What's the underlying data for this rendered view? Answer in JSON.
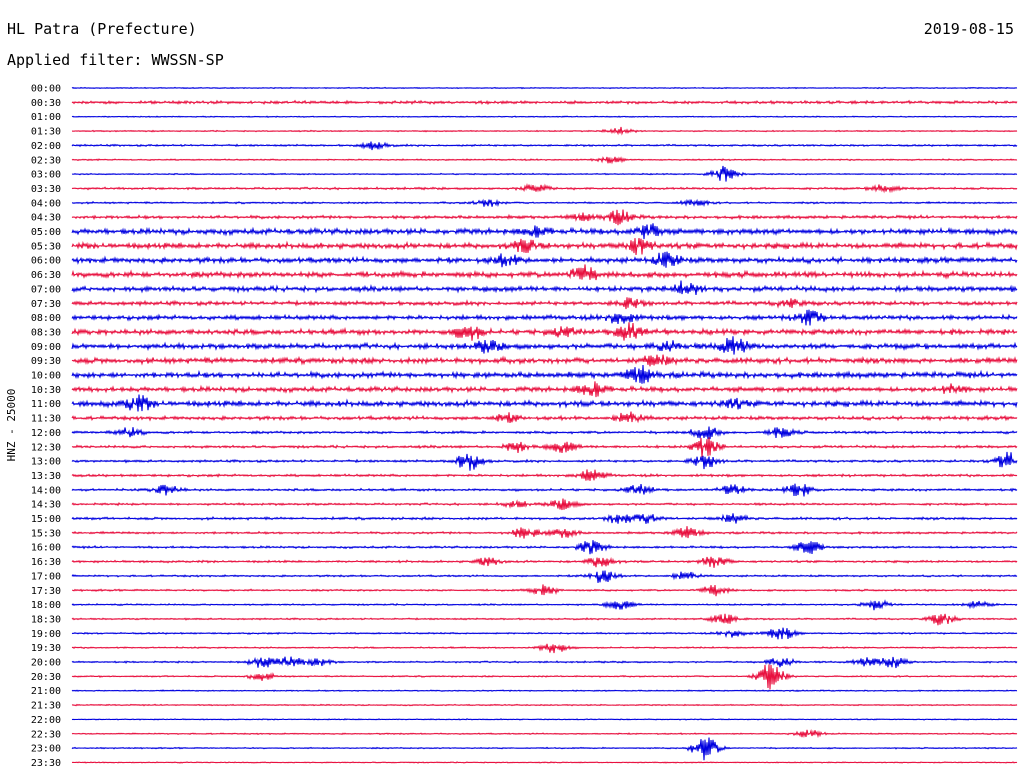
{
  "header": {
    "station": "HL Patra (Prefecture)",
    "date": "2019-08-15",
    "filter_label": "Applied filter:",
    "filter_value": "WWSSN-SP"
  },
  "chart_data": {
    "type": "line",
    "title": "HL Patra (Prefecture)",
    "ylabel": "HNZ - 25000",
    "xlabel": "",
    "grid": false,
    "colors": [
      "#0000e0",
      "#e8103f"
    ],
    "rows": [
      {
        "time": "00:00",
        "color": "blue",
        "noise": 0.6,
        "events": []
      },
      {
        "time": "00:30",
        "color": "red",
        "noise": 1.6,
        "events": []
      },
      {
        "time": "01:00",
        "color": "blue",
        "noise": 0.6,
        "events": []
      },
      {
        "time": "01:30",
        "color": "red",
        "noise": 0.7,
        "events": [
          [
            0.58,
            4
          ]
        ]
      },
      {
        "time": "02:00",
        "color": "blue",
        "noise": 1.0,
        "events": [
          [
            0.32,
            4
          ]
        ]
      },
      {
        "time": "02:30",
        "color": "red",
        "noise": 0.8,
        "events": [
          [
            0.57,
            3
          ]
        ]
      },
      {
        "time": "03:00",
        "color": "blue",
        "noise": 0.7,
        "events": [
          [
            0.69,
            8
          ]
        ]
      },
      {
        "time": "03:30",
        "color": "red",
        "noise": 1.2,
        "events": [
          [
            0.49,
            4
          ],
          [
            0.86,
            4
          ]
        ]
      },
      {
        "time": "04:00",
        "color": "blue",
        "noise": 1.0,
        "events": [
          [
            0.44,
            4
          ],
          [
            0.66,
            3
          ]
        ]
      },
      {
        "time": "04:30",
        "color": "red",
        "noise": 1.8,
        "events": [
          [
            0.58,
            7
          ],
          [
            0.54,
            3
          ]
        ]
      },
      {
        "time": "05:00",
        "color": "blue",
        "noise": 3.2,
        "events": [
          [
            0.49,
            5
          ],
          [
            0.61,
            7
          ]
        ]
      },
      {
        "time": "05:30",
        "color": "red",
        "noise": 3.2,
        "events": [
          [
            0.48,
            6
          ],
          [
            0.6,
            8
          ]
        ]
      },
      {
        "time": "06:00",
        "color": "blue",
        "noise": 3.0,
        "events": [
          [
            0.46,
            5
          ],
          [
            0.63,
            8
          ]
        ]
      },
      {
        "time": "06:30",
        "color": "red",
        "noise": 3.2,
        "events": [
          [
            0.54,
            8
          ]
        ]
      },
      {
        "time": "07:00",
        "color": "blue",
        "noise": 3.0,
        "events": [
          [
            0.65,
            8
          ]
        ]
      },
      {
        "time": "07:30",
        "color": "red",
        "noise": 2.2,
        "events": [
          [
            0.59,
            5
          ],
          [
            0.76,
            4
          ]
        ]
      },
      {
        "time": "08:00",
        "color": "blue",
        "noise": 2.6,
        "events": [
          [
            0.58,
            7
          ],
          [
            0.78,
            7
          ]
        ]
      },
      {
        "time": "08:30",
        "color": "red",
        "noise": 3.0,
        "events": [
          [
            0.42,
            8
          ],
          [
            0.59,
            9
          ],
          [
            0.52,
            4
          ]
        ]
      },
      {
        "time": "09:00",
        "color": "blue",
        "noise": 3.0,
        "events": [
          [
            0.44,
            5
          ],
          [
            0.7,
            9
          ],
          [
            0.63,
            5
          ]
        ]
      },
      {
        "time": "09:30",
        "color": "red",
        "noise": 3.2,
        "events": [
          [
            0.62,
            6
          ]
        ]
      },
      {
        "time": "10:00",
        "color": "blue",
        "noise": 3.2,
        "events": [
          [
            0.6,
            8
          ]
        ]
      },
      {
        "time": "10:30",
        "color": "red",
        "noise": 2.8,
        "events": [
          [
            0.55,
            8
          ],
          [
            0.93,
            4
          ]
        ]
      },
      {
        "time": "11:00",
        "color": "blue",
        "noise": 3.2,
        "events": [
          [
            0.07,
            7
          ],
          [
            0.7,
            4
          ]
        ]
      },
      {
        "time": "11:30",
        "color": "red",
        "noise": 2.0,
        "events": [
          [
            0.59,
            7
          ],
          [
            0.46,
            4
          ]
        ]
      },
      {
        "time": "12:00",
        "color": "blue",
        "noise": 1.4,
        "events": [
          [
            0.06,
            5
          ],
          [
            0.67,
            7
          ],
          [
            0.75,
            5
          ]
        ]
      },
      {
        "time": "12:30",
        "color": "red",
        "noise": 1.5,
        "events": [
          [
            0.67,
            10
          ],
          [
            0.52,
            6
          ],
          [
            0.47,
            5
          ]
        ]
      },
      {
        "time": "13:00",
        "color": "blue",
        "noise": 1.3,
        "events": [
          [
            0.42,
            9
          ],
          [
            0.67,
            7
          ],
          [
            0.99,
            9
          ]
        ]
      },
      {
        "time": "13:30",
        "color": "red",
        "noise": 1.4,
        "events": [
          [
            0.55,
            6
          ]
        ]
      },
      {
        "time": "14:00",
        "color": "blue",
        "noise": 1.3,
        "events": [
          [
            0.1,
            5
          ],
          [
            0.6,
            5
          ],
          [
            0.7,
            5
          ],
          [
            0.77,
            7
          ]
        ]
      },
      {
        "time": "14:30",
        "color": "red",
        "noise": 1.2,
        "events": [
          [
            0.52,
            5
          ],
          [
            0.47,
            3
          ]
        ]
      },
      {
        "time": "15:00",
        "color": "blue",
        "noise": 1.4,
        "events": [
          [
            0.58,
            6
          ],
          [
            0.61,
            5
          ],
          [
            0.7,
            5
          ]
        ]
      },
      {
        "time": "15:30",
        "color": "red",
        "noise": 1.2,
        "events": [
          [
            0.48,
            6
          ],
          [
            0.52,
            5
          ],
          [
            0.65,
            6
          ]
        ]
      },
      {
        "time": "16:00",
        "color": "blue",
        "noise": 1.2,
        "events": [
          [
            0.55,
            7
          ],
          [
            0.78,
            7
          ]
        ]
      },
      {
        "time": "16:30",
        "color": "red",
        "noise": 1.2,
        "events": [
          [
            0.56,
            6
          ],
          [
            0.68,
            6
          ],
          [
            0.44,
            4
          ]
        ]
      },
      {
        "time": "17:00",
        "color": "blue",
        "noise": 1.0,
        "events": [
          [
            0.56,
            7
          ],
          [
            0.65,
            5
          ]
        ]
      },
      {
        "time": "17:30",
        "color": "red",
        "noise": 1.0,
        "events": [
          [
            0.5,
            5
          ],
          [
            0.68,
            5
          ]
        ]
      },
      {
        "time": "18:00",
        "color": "blue",
        "noise": 0.9,
        "events": [
          [
            0.58,
            5
          ],
          [
            0.85,
            5
          ],
          [
            0.96,
            4
          ]
        ]
      },
      {
        "time": "18:30",
        "color": "red",
        "noise": 0.9,
        "events": [
          [
            0.69,
            6
          ],
          [
            0.92,
            6
          ]
        ]
      },
      {
        "time": "19:00",
        "color": "blue",
        "noise": 0.9,
        "events": [
          [
            0.75,
            7
          ],
          [
            0.7,
            4
          ]
        ]
      },
      {
        "time": "19:30",
        "color": "red",
        "noise": 0.8,
        "events": [
          [
            0.51,
            6
          ]
        ]
      },
      {
        "time": "20:00",
        "color": "blue",
        "noise": 0.9,
        "events": [
          [
            0.2,
            6
          ],
          [
            0.23,
            5
          ],
          [
            0.26,
            4
          ],
          [
            0.87,
            7
          ],
          [
            0.84,
            4
          ],
          [
            0.75,
            5
          ]
        ]
      },
      {
        "time": "20:30",
        "color": "red",
        "noise": 0.8,
        "events": [
          [
            0.74,
            14
          ],
          [
            0.2,
            4
          ]
        ]
      },
      {
        "time": "21:00",
        "color": "blue",
        "noise": 0.7,
        "events": []
      },
      {
        "time": "21:30",
        "color": "red",
        "noise": 0.7,
        "events": []
      },
      {
        "time": "22:00",
        "color": "blue",
        "noise": 0.6,
        "events": []
      },
      {
        "time": "22:30",
        "color": "red",
        "noise": 0.7,
        "events": [
          [
            0.78,
            4
          ]
        ]
      },
      {
        "time": "23:00",
        "color": "blue",
        "noise": 0.7,
        "events": [
          [
            0.67,
            12
          ]
        ]
      },
      {
        "time": "23:30",
        "color": "red",
        "noise": 0.6,
        "events": []
      }
    ]
  }
}
